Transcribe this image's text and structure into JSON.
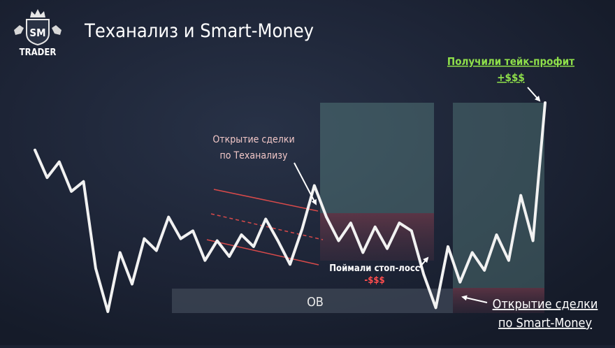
{
  "brand": {
    "monogram": "SM",
    "name": "TRADER"
  },
  "title": "Теханализ и Smart-Money",
  "zones": {
    "ob_label": "OB"
  },
  "annotations": {
    "ta_entry_line1": "Открытие сделки",
    "ta_entry_line2": "по Теханализу",
    "stop_loss_line1": "Поймали стоп-лосс",
    "stop_loss_line2": "-$$$",
    "take_profit_line1": "Получили тейк-профит",
    "take_profit_line2": "+$$$",
    "sm_entry_line1": "Открытие сделки",
    "sm_entry_line2": "по Smart-Money"
  },
  "colors": {
    "background": "#1b2233",
    "price_line": "#f2f2f2",
    "channel": "#d94a4a",
    "take_profit_zone": "#5f8a88",
    "stop_loss_zone": "#6e3a4a",
    "ob_zone": "#3b4352",
    "profit_text": "#8fe04a",
    "loss_text": "#ff4d4d"
  },
  "chart_data": {
    "type": "line",
    "title": "Теханализ и Smart-Money",
    "xlabel": "",
    "ylabel": "",
    "grid": false,
    "series": [
      {
        "values": [
          82,
          68,
          76,
          61,
          66,
          22,
          0,
          30,
          14,
          37,
          31,
          48,
          37,
          41,
          26,
          36,
          28,
          39,
          33,
          47,
          36,
          24,
          42,
          64,
          48,
          36,
          45,
          30,
          43,
          32,
          45,
          41,
          19,
          2,
          33,
          15,
          30,
          21,
          39,
          26,
          59,
          36,
          106
        ]
      }
    ]
  }
}
